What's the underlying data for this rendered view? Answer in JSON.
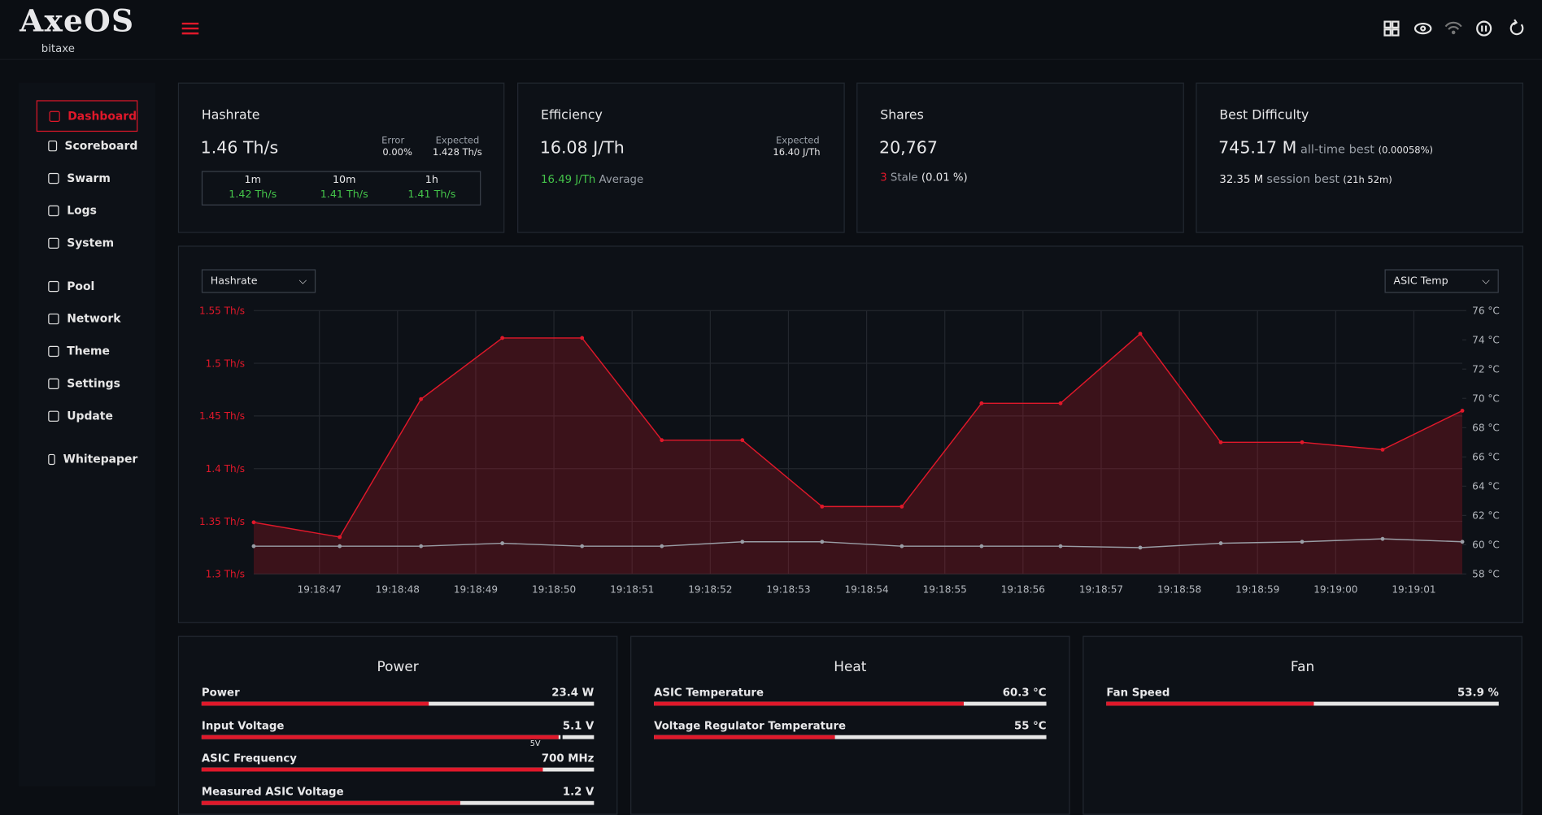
{
  "header": {
    "logo": "AxeOS",
    "sub": "bitaxe"
  },
  "nav": [
    "Dashboard",
    "Scoreboard",
    "Swarm",
    "Logs",
    "System",
    "Pool",
    "Network",
    "Theme",
    "Settings",
    "Update",
    "Whitepaper"
  ],
  "cards": {
    "hashrate": {
      "title": "Hashrate",
      "value": "1.46 Th/s",
      "error_label": "Error",
      "error": "0.00%",
      "expected_label": "Expected",
      "expected": "1.428 Th/s",
      "periods": [
        {
          "label": "1m",
          "value": "1.42 Th/s"
        },
        {
          "label": "10m",
          "value": "1.41 Th/s"
        },
        {
          "label": "1h",
          "value": "1.41 Th/s"
        }
      ]
    },
    "efficiency": {
      "title": "Efficiency",
      "value": "16.08 J/Th",
      "expected_label": "Expected",
      "expected": "16.40 J/Th",
      "average": "16.49 J/Th",
      "average_label": "Average"
    },
    "shares": {
      "title": "Shares",
      "value": "20,767",
      "stale_count": "3",
      "stale_label": "Stale",
      "stale_pct": "(0.01 %)"
    },
    "best": {
      "title": "Best Difficulty",
      "value": "745.17 M",
      "alltime_label": "all-time best",
      "alltime_pct": "(0.00058%)",
      "session": "32.35 M",
      "session_label": "session best",
      "session_time": "(21h 52m)"
    }
  },
  "selects": {
    "left": "Hashrate",
    "right": "ASIC Temp"
  },
  "chart_data": {
    "type": "line",
    "x": [
      69526.16,
      69527.26,
      69528.3,
      69529.34,
      69530.36,
      69531.38,
      69532.41,
      69533.43,
      69534.45,
      69535.47,
      69536.48,
      69537.5,
      69538.53,
      69539.57,
      69540.6,
      69541.62
    ],
    "xlim": [
      69526.16,
      69541.62
    ],
    "xticks": [
      {
        "value": 69527,
        "label": "19:18:47"
      },
      {
        "value": 69528,
        "label": "19:18:48"
      },
      {
        "value": 69529,
        "label": "19:18:49"
      },
      {
        "value": 69530,
        "label": "19:18:50"
      },
      {
        "value": 69531,
        "label": "19:18:51"
      },
      {
        "value": 69532,
        "label": "19:18:52"
      },
      {
        "value": 69533,
        "label": "19:18:53"
      },
      {
        "value": 69534,
        "label": "19:18:54"
      },
      {
        "value": 69535,
        "label": "19:18:55"
      },
      {
        "value": 69536,
        "label": "19:18:56"
      },
      {
        "value": 69537,
        "label": "19:18:57"
      },
      {
        "value": 69538,
        "label": "19:18:58"
      },
      {
        "value": 69539,
        "label": "19:18:59"
      },
      {
        "value": 69540,
        "label": "19:19:00"
      },
      {
        "value": 69541,
        "label": "19:19:01"
      }
    ],
    "ylim": [
      1.3,
      1.55
    ],
    "yticks": [
      {
        "value": 1.3,
        "label": "1.3 Th/s"
      },
      {
        "value": 1.35,
        "label": "1.35 Th/s"
      },
      {
        "value": 1.4,
        "label": "1.4 Th/s"
      },
      {
        "value": 1.45,
        "label": "1.45 Th/s"
      },
      {
        "value": 1.5,
        "label": "1.5 Th/s"
      },
      {
        "value": 1.55,
        "label": "1.55 Th/s"
      }
    ],
    "y2lim": [
      58,
      76
    ],
    "y2ticks": [
      {
        "value": 58,
        "label": "58 °C"
      },
      {
        "value": 60,
        "label": "60 °C"
      },
      {
        "value": 62,
        "label": "62 °C"
      },
      {
        "value": 64,
        "label": "64 °C"
      },
      {
        "value": 66,
        "label": "66 °C"
      },
      {
        "value": 68,
        "label": "68 °C"
      },
      {
        "value": 70,
        "label": "70 °C"
      },
      {
        "value": 72,
        "label": "72 °C"
      },
      {
        "value": 74,
        "label": "74 °C"
      },
      {
        "value": 76,
        "label": "76 °C"
      }
    ],
    "grid": true,
    "series": [
      {
        "name": "Hashrate",
        "color": "#e0182a",
        "fill": true,
        "values": [
          1.349,
          1.335,
          1.466,
          1.524,
          1.524,
          1.427,
          1.427,
          1.364,
          1.364,
          1.462,
          1.462,
          1.528,
          1.425,
          1.425,
          1.418,
          1.455
        ]
      },
      {
        "name": "ASIC Temp",
        "color": "#9a9ea6",
        "axis": "y2",
        "values": [
          59.9,
          59.9,
          59.9,
          60.1,
          59.9,
          59.9,
          60.2,
          60.2,
          59.9,
          59.9,
          59.9,
          59.8,
          60.1,
          60.2,
          60.4,
          60.2
        ]
      }
    ]
  },
  "panels": [
    {
      "title": "Power",
      "rows": [
        {
          "label": "Power",
          "value": "23.4 W"
        },
        {
          "label": "Input Voltage",
          "value": "5.1 V",
          "marker": "5V"
        },
        {
          "label": "ASIC Frequency",
          "value": "700 MHz"
        },
        {
          "label": "Measured ASIC Voltage",
          "value": "1.2 V"
        }
      ]
    },
    {
      "title": "Heat",
      "rows": [
        {
          "label": "ASIC Temperature",
          "value": "60.3 °C"
        },
        {
          "label": "Voltage Regulator Temperature",
          "value": "55 °C"
        }
      ]
    },
    {
      "title": "Fan",
      "rows": [
        {
          "label": "Fan Speed",
          "value": "53.9 %"
        }
      ]
    }
  ]
}
